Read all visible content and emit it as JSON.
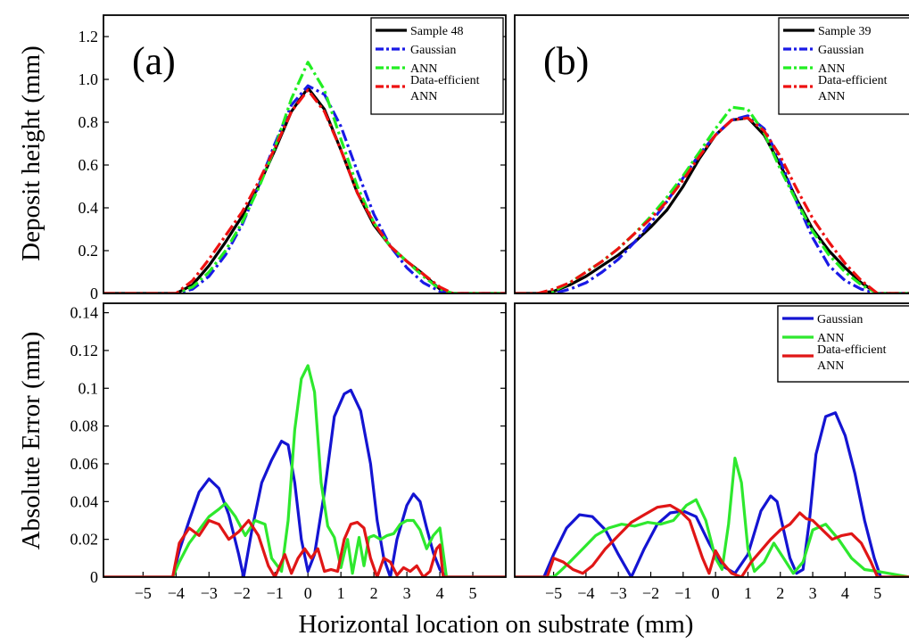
{
  "figure": {
    "xlabel": "Horizontal location on substrate (mm)",
    "ylabel_top": "Deposit height (mm)",
    "ylabel_bottom": "Absolute Error (mm)"
  },
  "chart_data": [
    {
      "type": "line",
      "panel": "(a)",
      "role": "profile",
      "xlim": [
        -6.2,
        6.0
      ],
      "ylim": [
        0,
        1.3
      ],
      "yticks": [
        0,
        0.2,
        0.4,
        0.6,
        0.8,
        1.0,
        1.2
      ],
      "ytick_labels": [
        "0",
        "0.2",
        "0.4",
        "0.6",
        "0.8",
        "1.0",
        "1.2"
      ],
      "xticks": [],
      "xlabel": "",
      "ylabel": "Deposit height (mm)",
      "legend_position": "top-right",
      "series": [
        {
          "name": "Sample 48",
          "color": "#000000",
          "style": "solid",
          "x": [
            -6.2,
            -4.0,
            -3.5,
            -3.0,
            -2.5,
            -2.0,
            -1.5,
            -1.0,
            -0.5,
            0.0,
            0.5,
            1.0,
            1.5,
            2.0,
            2.5,
            3.0,
            3.5,
            4.0,
            4.4,
            6.0
          ],
          "y": [
            0,
            0,
            0.04,
            0.13,
            0.24,
            0.36,
            0.5,
            0.67,
            0.85,
            0.96,
            0.86,
            0.67,
            0.47,
            0.32,
            0.22,
            0.15,
            0.09,
            0.02,
            0,
            0
          ]
        },
        {
          "name": "Gaussian",
          "color": "#1a1ae6",
          "style": "dash-dot",
          "x": [
            -6.2,
            -4.0,
            -3.5,
            -3.0,
            -2.5,
            -2.0,
            -1.5,
            -1.0,
            -0.5,
            0.0,
            0.5,
            1.0,
            1.5,
            2.0,
            2.5,
            3.0,
            3.5,
            4.0,
            4.4,
            6.0
          ],
          "y": [
            0,
            0,
            0.02,
            0.08,
            0.18,
            0.32,
            0.5,
            0.7,
            0.88,
            0.97,
            0.93,
            0.78,
            0.57,
            0.37,
            0.22,
            0.12,
            0.05,
            0.01,
            0,
            0
          ]
        },
        {
          "name": "ANN",
          "color": "#22ee22",
          "style": "dash-dot",
          "x": [
            -6.2,
            -4.0,
            -3.5,
            -3.0,
            -2.5,
            -2.0,
            -1.5,
            -1.0,
            -0.5,
            0.0,
            0.5,
            1.0,
            1.5,
            2.0,
            2.5,
            3.0,
            3.5,
            4.0,
            4.4,
            6.0
          ],
          "y": [
            0,
            0,
            0.03,
            0.1,
            0.2,
            0.33,
            0.49,
            0.68,
            0.91,
            1.08,
            0.95,
            0.72,
            0.5,
            0.33,
            0.22,
            0.15,
            0.08,
            0.02,
            0,
            0
          ]
        },
        {
          "name": "Data-efficient ANN",
          "color": "#ee1111",
          "style": "dash-dot",
          "x": [
            -6.2,
            -4.0,
            -3.5,
            -3.0,
            -2.5,
            -2.0,
            -1.5,
            -1.0,
            -0.5,
            0.0,
            0.5,
            1.0,
            1.5,
            2.0,
            2.5,
            3.0,
            3.5,
            4.0,
            4.4,
            6.0
          ],
          "y": [
            0,
            0,
            0.06,
            0.16,
            0.27,
            0.38,
            0.52,
            0.68,
            0.85,
            0.95,
            0.85,
            0.67,
            0.47,
            0.33,
            0.22,
            0.15,
            0.09,
            0.03,
            0,
            0
          ]
        }
      ]
    },
    {
      "type": "line",
      "panel": "(b)",
      "role": "profile",
      "xlim": [
        -6.2,
        6.0
      ],
      "ylim": [
        0,
        1.3
      ],
      "yticks": [],
      "xticks": [],
      "xlabel": "",
      "ylabel": "",
      "legend_position": "top-right",
      "series": [
        {
          "name": "Sample 39",
          "color": "#000000",
          "style": "solid",
          "x": [
            -6.2,
            -5.5,
            -5.0,
            -4.5,
            -4.0,
            -3.5,
            -3.0,
            -2.5,
            -2.0,
            -1.5,
            -1.0,
            -0.5,
            0.0,
            0.5,
            1.0,
            1.5,
            2.0,
            2.5,
            3.0,
            3.5,
            4.0,
            4.5,
            5.0,
            6.0
          ],
          "y": [
            0,
            0,
            0.01,
            0.04,
            0.08,
            0.13,
            0.18,
            0.24,
            0.31,
            0.39,
            0.5,
            0.63,
            0.74,
            0.81,
            0.82,
            0.74,
            0.6,
            0.44,
            0.3,
            0.2,
            0.12,
            0.05,
            0,
            0
          ]
        },
        {
          "name": "Gaussian",
          "color": "#1a1ae6",
          "style": "dash-dot",
          "x": [
            -6.2,
            -5.5,
            -5.0,
            -4.5,
            -4.0,
            -3.5,
            -3.0,
            -2.5,
            -2.0,
            -1.5,
            -1.0,
            -0.5,
            0.0,
            0.5,
            1.0,
            1.5,
            2.0,
            2.5,
            3.0,
            3.5,
            4.0,
            4.5,
            5.0,
            6.0
          ],
          "y": [
            0,
            0,
            0,
            0.02,
            0.05,
            0.1,
            0.16,
            0.24,
            0.33,
            0.43,
            0.54,
            0.65,
            0.74,
            0.81,
            0.83,
            0.77,
            0.62,
            0.43,
            0.26,
            0.13,
            0.06,
            0.02,
            0,
            0
          ]
        },
        {
          "name": "ANN",
          "color": "#22ee22",
          "style": "dash-dot",
          "x": [
            -6.2,
            -5.5,
            -5.0,
            -4.5,
            -4.0,
            -3.5,
            -3.0,
            -2.5,
            -2.0,
            -1.5,
            -1.0,
            -0.5,
            0.0,
            0.5,
            1.0,
            1.5,
            2.0,
            2.5,
            3.0,
            3.5,
            4.0,
            4.5,
            5.0,
            6.0
          ],
          "y": [
            0,
            0,
            0.01,
            0.05,
            0.1,
            0.15,
            0.21,
            0.28,
            0.36,
            0.45,
            0.55,
            0.66,
            0.77,
            0.87,
            0.86,
            0.75,
            0.58,
            0.43,
            0.29,
            0.18,
            0.1,
            0.04,
            0,
            0
          ]
        },
        {
          "name": "Data-efficient ANN",
          "color": "#ee1111",
          "style": "dash-dot",
          "x": [
            -6.2,
            -5.5,
            -5.0,
            -4.5,
            -4.0,
            -3.5,
            -3.0,
            -2.5,
            -2.0,
            -1.5,
            -1.0,
            -0.5,
            0.0,
            0.5,
            1.0,
            1.5,
            2.0,
            2.5,
            3.0,
            3.5,
            4.0,
            4.5,
            5.0,
            6.0
          ],
          "y": [
            0,
            0,
            0.02,
            0.05,
            0.1,
            0.15,
            0.21,
            0.28,
            0.35,
            0.43,
            0.53,
            0.64,
            0.74,
            0.81,
            0.82,
            0.76,
            0.64,
            0.49,
            0.35,
            0.24,
            0.14,
            0.06,
            0,
            0
          ]
        }
      ]
    },
    {
      "type": "line",
      "panel": "(a)",
      "role": "error",
      "xlim": [
        -6.2,
        6.0
      ],
      "ylim": [
        0,
        0.145
      ],
      "yticks": [
        0,
        0.02,
        0.04,
        0.06,
        0.08,
        0.1,
        0.12,
        0.14
      ],
      "ytick_labels": [
        "0",
        "0.02",
        "0.04",
        "0.06",
        "0.08",
        "0.1",
        "0.12",
        "0.14"
      ],
      "xticks": [
        -5,
        -4,
        -3,
        -2,
        -1,
        0,
        1,
        2,
        3,
        4,
        5
      ],
      "xtick_labels": [
        "−5",
        "−4",
        "−3",
        "−2",
        "−1",
        "0",
        "1",
        "2",
        "3",
        "4",
        "5"
      ],
      "xlabel": "Horizontal location on substrate (mm)",
      "ylabel": "Absolute Error (mm)",
      "legend_position": "top-right",
      "series": [
        {
          "name": "Gaussian",
          "color": "#1414d2",
          "x": [
            -6.2,
            -4.1,
            -3.9,
            -3.6,
            -3.3,
            -3.0,
            -2.7,
            -2.4,
            -2.1,
            -1.95,
            -1.7,
            -1.4,
            -1.1,
            -0.8,
            -0.6,
            -0.4,
            -0.2,
            0.0,
            0.2,
            0.5,
            0.8,
            1.1,
            1.3,
            1.6,
            1.9,
            2.1,
            2.3,
            2.5,
            2.7,
            3.0,
            3.2,
            3.4,
            3.6,
            3.8,
            4.0,
            4.2,
            6.0
          ],
          "y": [
            0,
            0,
            0.014,
            0.03,
            0.045,
            0.052,
            0.047,
            0.033,
            0.012,
            0,
            0.025,
            0.05,
            0.062,
            0.072,
            0.07,
            0.05,
            0.02,
            0.003,
            0.012,
            0.045,
            0.085,
            0.097,
            0.099,
            0.088,
            0.06,
            0.03,
            0.01,
            0,
            0.02,
            0.038,
            0.044,
            0.04,
            0.026,
            0.013,
            0.004,
            0,
            0
          ]
        },
        {
          "name": "ANN",
          "color": "#2ee82e",
          "x": [
            -6.2,
            -4.1,
            -3.9,
            -3.6,
            -3.3,
            -3.0,
            -2.7,
            -2.5,
            -2.2,
            -1.9,
            -1.6,
            -1.3,
            -1.1,
            -0.8,
            -0.6,
            -0.4,
            -0.2,
            0.0,
            0.2,
            0.4,
            0.6,
            0.8,
            1.0,
            1.2,
            1.35,
            1.55,
            1.7,
            1.85,
            2.0,
            2.2,
            2.4,
            2.6,
            2.8,
            3.0,
            3.2,
            3.4,
            3.6,
            3.8,
            4.0,
            4.2,
            6.0
          ],
          "y": [
            0,
            0,
            0.008,
            0.018,
            0.025,
            0.032,
            0.036,
            0.039,
            0.032,
            0.022,
            0.03,
            0.028,
            0.01,
            0.003,
            0.03,
            0.078,
            0.105,
            0.112,
            0.098,
            0.05,
            0.027,
            0.021,
            0.005,
            0.02,
            0.002,
            0.021,
            0.006,
            0.021,
            0.022,
            0.02,
            0.022,
            0.023,
            0.028,
            0.03,
            0.03,
            0.025,
            0.015,
            0.022,
            0.026,
            0,
            0
          ]
        },
        {
          "name": "Data-efficient ANN",
          "color": "#e01616",
          "x": [
            -6.2,
            -4.1,
            -3.9,
            -3.6,
            -3.3,
            -3.0,
            -2.7,
            -2.4,
            -2.1,
            -1.8,
            -1.5,
            -1.2,
            -1.0,
            -0.7,
            -0.5,
            -0.3,
            -0.1,
            0.1,
            0.3,
            0.5,
            0.7,
            0.9,
            1.1,
            1.3,
            1.5,
            1.7,
            1.9,
            2.1,
            2.3,
            2.5,
            2.7,
            2.9,
            3.1,
            3.3,
            3.5,
            3.7,
            3.9,
            4.0,
            4.1,
            6.0
          ],
          "y": [
            0,
            0,
            0.018,
            0.026,
            0.022,
            0.03,
            0.028,
            0.02,
            0.024,
            0.03,
            0.022,
            0.006,
            0,
            0.012,
            0.002,
            0.01,
            0.015,
            0.01,
            0.015,
            0.003,
            0.004,
            0.003,
            0.02,
            0.028,
            0.029,
            0.026,
            0.01,
            0,
            0.01,
            0.008,
            0.001,
            0.005,
            0.003,
            0.006,
            0,
            0.003,
            0.015,
            0.017,
            0,
            0
          ]
        }
      ]
    },
    {
      "type": "line",
      "panel": "(b)",
      "role": "error",
      "xlim": [
        -6.2,
        6.0
      ],
      "ylim": [
        0,
        0.145
      ],
      "yticks": [],
      "xticks": [
        -5,
        -4,
        -3,
        -2,
        -1,
        0,
        1,
        2,
        3,
        4,
        5
      ],
      "xtick_labels": [
        "−5",
        "−4",
        "−3",
        "−2",
        "−1",
        "0",
        "1",
        "2",
        "3",
        "4",
        "5"
      ],
      "xlabel": "",
      "ylabel": "",
      "legend_position": "top-right",
      "series": [
        {
          "name": "Gaussian",
          "color": "#1414d2",
          "x": [
            -6.2,
            -5.3,
            -5.0,
            -4.6,
            -4.2,
            -3.8,
            -3.4,
            -3.0,
            -2.6,
            -2.2,
            -1.8,
            -1.4,
            -1.0,
            -0.6,
            -0.2,
            0.2,
            0.6,
            1.0,
            1.4,
            1.7,
            1.9,
            2.1,
            2.3,
            2.5,
            2.7,
            2.9,
            3.1,
            3.4,
            3.7,
            4.0,
            4.3,
            4.6,
            4.9,
            5.1,
            6.0
          ],
          "y": [
            0,
            0,
            0.012,
            0.026,
            0.033,
            0.032,
            0.025,
            0.012,
            0,
            0.015,
            0.028,
            0.034,
            0.035,
            0.032,
            0.018,
            0.006,
            0.002,
            0.012,
            0.035,
            0.043,
            0.04,
            0.025,
            0.01,
            0.002,
            0.004,
            0.03,
            0.065,
            0.085,
            0.087,
            0.075,
            0.055,
            0.03,
            0.01,
            0,
            0
          ]
        },
        {
          "name": "ANN",
          "color": "#2ee82e",
          "x": [
            -6.2,
            -5.0,
            -4.8,
            -4.5,
            -4.1,
            -3.7,
            -3.3,
            -2.9,
            -2.5,
            -2.1,
            -1.7,
            -1.3,
            -0.9,
            -0.6,
            -0.3,
            0.0,
            0.2,
            0.4,
            0.6,
            0.8,
            1.0,
            1.2,
            1.5,
            1.8,
            2.1,
            2.4,
            2.7,
            3.0,
            3.4,
            3.8,
            4.2,
            4.6,
            5.0,
            6.0
          ],
          "y": [
            0,
            0,
            0.003,
            0.008,
            0.015,
            0.022,
            0.026,
            0.028,
            0.027,
            0.029,
            0.028,
            0.03,
            0.038,
            0.041,
            0.03,
            0.01,
            0.004,
            0.028,
            0.063,
            0.05,
            0.015,
            0.003,
            0.008,
            0.018,
            0.01,
            0.002,
            0.008,
            0.025,
            0.028,
            0.02,
            0.01,
            0.004,
            0.003,
            0
          ]
        },
        {
          "name": "Data-efficient ANN",
          "color": "#e01616",
          "x": [
            -6.2,
            -5.2,
            -5.0,
            -4.7,
            -4.4,
            -4.1,
            -3.8,
            -3.4,
            -3.0,
            -2.6,
            -2.2,
            -1.8,
            -1.4,
            -1.1,
            -0.8,
            -0.6,
            -0.4,
            -0.2,
            0.0,
            0.2,
            0.5,
            0.8,
            1.1,
            1.4,
            1.7,
            2.0,
            2.3,
            2.6,
            2.8,
            3.0,
            3.3,
            3.6,
            3.9,
            4.2,
            4.5,
            4.8,
            5.0,
            6.0
          ],
          "y": [
            0,
            0,
            0.01,
            0.008,
            0.004,
            0.002,
            0.006,
            0.015,
            0.022,
            0.029,
            0.033,
            0.037,
            0.038,
            0.035,
            0.03,
            0.02,
            0.01,
            0.002,
            0.014,
            0.008,
            0.002,
            0.0,
            0.008,
            0.014,
            0.02,
            0.025,
            0.028,
            0.034,
            0.031,
            0.03,
            0.025,
            0.02,
            0.022,
            0.023,
            0.018,
            0.008,
            0,
            0
          ]
        }
      ]
    }
  ]
}
